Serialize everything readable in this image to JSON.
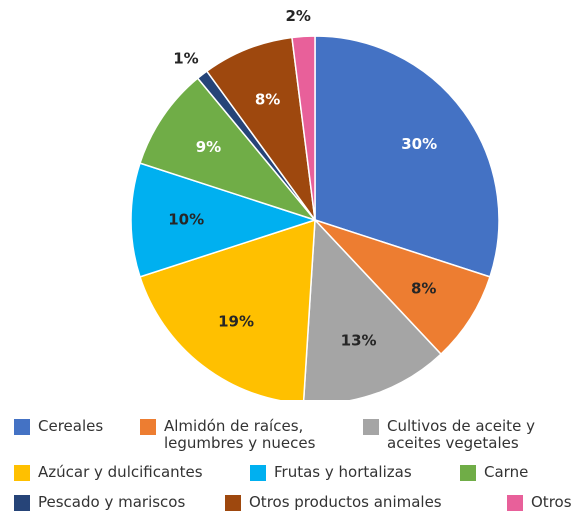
{
  "chart_data": {
    "type": "pie",
    "categories": [
      "Cereales",
      "Almidón de raíces, legumbres y nueces",
      "Cultivos de aceite y aceites vegetales",
      "Azúcar y dulcificantes",
      "Frutas y hortalizas",
      "Carne",
      "Pescado y mariscos",
      "Otros productos animales",
      "Otros"
    ],
    "values": [
      30,
      8,
      13,
      19,
      10,
      9,
      1,
      8,
      2
    ],
    "value_labels": [
      "30%",
      "8%",
      "13%",
      "19%",
      "10%",
      "9%",
      "1%",
      "8%",
      "2%"
    ],
    "colors": [
      "#4472c4",
      "#ed7d31",
      "#a5a5a5",
      "#ffc000",
      "#00b0f0",
      "#70ad47",
      "#264478",
      "#9e480e",
      "#e8609a"
    ],
    "label_colors": [
      "#ffffff",
      "#262626",
      "#262626",
      "#262626",
      "#262626",
      "#ffffff",
      "#262626",
      "#ffffff",
      "#262626"
    ]
  }
}
